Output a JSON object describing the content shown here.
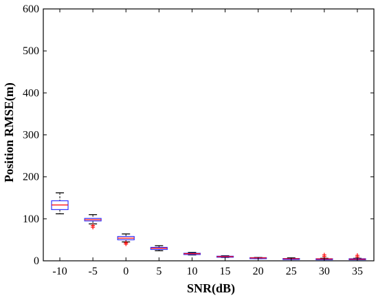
{
  "chart_data": {
    "type": "box",
    "title": "",
    "xlabel": "SNR(dB)",
    "ylabel": "Position RMSE(m)",
    "categories": [
      "-10",
      "-5",
      "0",
      "5",
      "10",
      "15",
      "20",
      "25",
      "30",
      "35"
    ],
    "ylim": [
      0,
      600
    ],
    "yticks": [
      0,
      100,
      200,
      300,
      400,
      500,
      600
    ],
    "grid": false,
    "boxes": [
      {
        "category": "-10",
        "whisker_low": 112,
        "q1": 122,
        "median": 133,
        "q3": 143,
        "whisker_high": 162,
        "outliers": []
      },
      {
        "category": "-5",
        "whisker_low": 88,
        "q1": 95,
        "median": 98,
        "q3": 101,
        "whisker_high": 110,
        "outliers": [
          80,
          84
        ]
      },
      {
        "category": "0",
        "whisker_low": 45,
        "q1": 50,
        "median": 54,
        "q3": 58,
        "whisker_high": 64,
        "outliers": [
          40,
          43
        ]
      },
      {
        "category": "5",
        "whisker_low": 24,
        "q1": 27,
        "median": 30,
        "q3": 32,
        "whisker_high": 36,
        "outliers": []
      },
      {
        "category": "10",
        "whisker_low": 14,
        "q1": 15,
        "median": 17,
        "q3": 18,
        "whisker_high": 20,
        "outliers": []
      },
      {
        "category": "15",
        "whisker_low": 8,
        "q1": 9,
        "median": 10,
        "q3": 11,
        "whisker_high": 12,
        "outliers": []
      },
      {
        "category": "20",
        "whisker_low": 5,
        "q1": 6,
        "median": 7,
        "q3": 7.5,
        "whisker_high": 8,
        "outliers": []
      },
      {
        "category": "25",
        "whisker_low": 4,
        "q1": 4.5,
        "median": 5,
        "q3": 5.5,
        "whisker_high": 7,
        "outliers": []
      },
      {
        "category": "30",
        "whisker_low": 3,
        "q1": 4,
        "median": 4.5,
        "q3": 5,
        "whisker_high": 6,
        "outliers": [
          10,
          14
        ]
      },
      {
        "category": "35",
        "whisker_low": 3,
        "q1": 3.5,
        "median": 4,
        "q3": 5,
        "whisker_high": 6,
        "outliers": [
          9,
          13
        ]
      }
    ],
    "colors": {
      "box": "#3333ff",
      "median": "#ff0000",
      "whisker": "#000000",
      "outlier": "#ff0000",
      "axes": "#000000"
    }
  }
}
